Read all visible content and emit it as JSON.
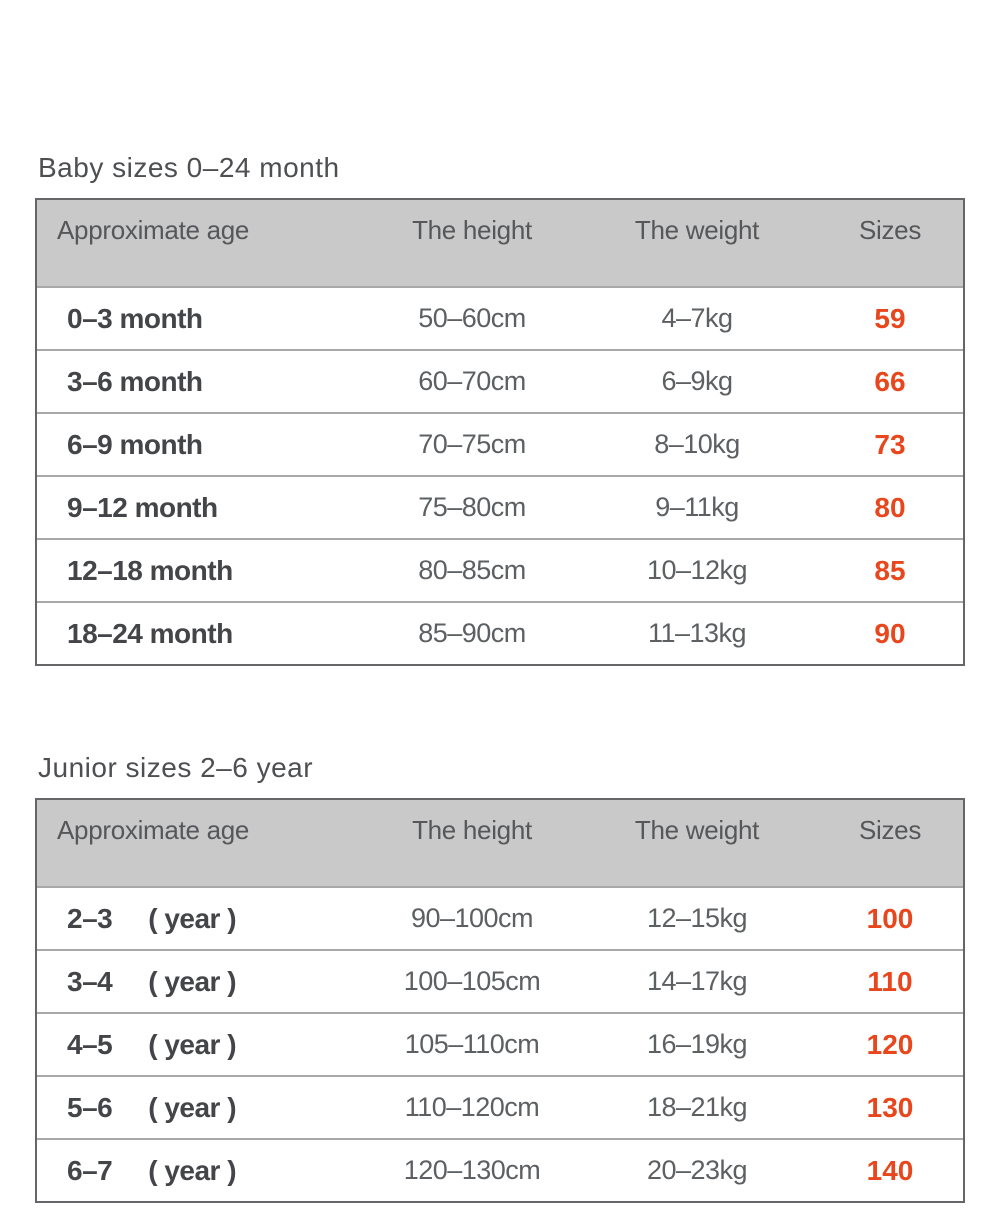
{
  "colors": {
    "header_bg": "#c9c9c9",
    "table_border": "#64666a",
    "row_divider": "#a8a8a8",
    "title_text": "#4d4f52",
    "header_text": "#55575a",
    "age_text": "#434548",
    "value_text": "#5d6063",
    "size_text": "#e8471d"
  },
  "chart_data": [
    {
      "type": "table",
      "title": "Baby sizes 0–24 month",
      "columns": [
        "Approximate age",
        "The height",
        "The weight",
        "Sizes"
      ],
      "rows": [
        {
          "age": "0–3 month",
          "height": "50–60cm",
          "weight": "4–7kg",
          "size": "59"
        },
        {
          "age": "3–6 month",
          "height": "60–70cm",
          "weight": "6–9kg",
          "size": "66"
        },
        {
          "age": "6–9 month",
          "height": "70–75cm",
          "weight": "8–10kg",
          "size": "73"
        },
        {
          "age": "9–12 month",
          "height": "75–80cm",
          "weight": "9–11kg",
          "size": "80"
        },
        {
          "age": "12–18 month",
          "height": "80–85cm",
          "weight": "10–12kg",
          "size": "85"
        },
        {
          "age": "18–24 month",
          "height": "85–90cm",
          "weight": "11–13kg",
          "size": "90"
        }
      ]
    },
    {
      "type": "table",
      "title": "Junior sizes 2–6 year",
      "columns": [
        "Approximate age",
        "The height",
        "The weight",
        "Sizes"
      ],
      "age_unit_suffix": "( year )",
      "rows": [
        {
          "age": "2–3",
          "age_suffix": "( year )",
          "height": "90–100cm",
          "weight": "12–15kg",
          "size": "100"
        },
        {
          "age": "3–4",
          "age_suffix": "( year )",
          "height": "100–105cm",
          "weight": "14–17kg",
          "size": "110"
        },
        {
          "age": "4–5",
          "age_suffix": "( year )",
          "height": "105–110cm",
          "weight": "16–19kg",
          "size": "120"
        },
        {
          "age": "5–6",
          "age_suffix": "( year )",
          "height": "110–120cm",
          "weight": "18–21kg",
          "size": "130"
        },
        {
          "age": "6–7",
          "age_suffix": "( year )",
          "height": "120–130cm",
          "weight": "20–23kg",
          "size": "140"
        }
      ]
    }
  ]
}
